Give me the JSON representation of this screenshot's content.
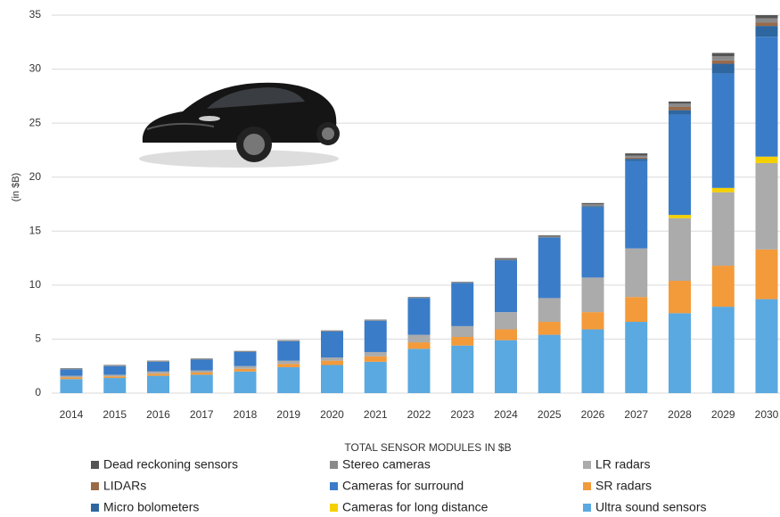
{
  "chart_data": {
    "type": "stacked-bar",
    "y_label": "(in $B)",
    "x_label": "TOTAL SENSOR MODULES IN $B",
    "categories": [
      "2014",
      "2015",
      "2016",
      "2017",
      "2018",
      "2019",
      "2020",
      "2021",
      "2022",
      "2023",
      "2024",
      "2025",
      "2026",
      "2027",
      "2028",
      "2029",
      "2030"
    ],
    "series": [
      {
        "name": "Ultra sound sensors",
        "color": "#5aa9e0",
        "values": [
          1.3,
          1.4,
          1.6,
          1.7,
          2.0,
          2.4,
          2.6,
          2.9,
          4.1,
          4.4,
          4.9,
          5.4,
          5.9,
          6.6,
          7.4,
          8.0,
          8.7
        ]
      },
      {
        "name": "SR radars",
        "color": "#f39a3a",
        "values": [
          0.15,
          0.15,
          0.2,
          0.2,
          0.25,
          0.3,
          0.4,
          0.5,
          0.6,
          0.8,
          1.0,
          1.2,
          1.6,
          2.3,
          3.0,
          3.8,
          4.6
        ]
      },
      {
        "name": "LR radars",
        "color": "#ababab",
        "values": [
          0.15,
          0.15,
          0.2,
          0.2,
          0.25,
          0.3,
          0.3,
          0.4,
          0.7,
          1.0,
          1.6,
          2.2,
          3.2,
          4.5,
          5.8,
          6.8,
          8.0
        ]
      },
      {
        "name": "Cameras for long distance",
        "color": "#f5d000",
        "values": [
          0,
          0,
          0,
          0,
          0,
          0,
          0,
          0,
          0,
          0,
          0,
          0,
          0,
          0,
          0.3,
          0.4,
          0.6
        ]
      },
      {
        "name": "Cameras for surround",
        "color": "#3a7cc8",
        "values": [
          0.6,
          0.8,
          0.9,
          1.0,
          1.3,
          1.8,
          2.4,
          2.9,
          3.4,
          4.0,
          4.8,
          5.6,
          6.5,
          8.1,
          9.3,
          10.6,
          11.1
        ]
      },
      {
        "name": "Micro bolometers",
        "color": "#2e67a0",
        "values": [
          0,
          0,
          0,
          0,
          0,
          0,
          0,
          0,
          0,
          0,
          0,
          0,
          0.1,
          0.2,
          0.4,
          0.9,
          1.0
        ]
      },
      {
        "name": "LIDARs",
        "color": "#9a6a48",
        "values": [
          0,
          0,
          0,
          0,
          0,
          0,
          0,
          0,
          0,
          0,
          0,
          0,
          0,
          0.1,
          0.3,
          0.3,
          0.3
        ]
      },
      {
        "name": "Stereo cameras",
        "color": "#8a8a8a",
        "values": [
          0.05,
          0.05,
          0.05,
          0.05,
          0.05,
          0.05,
          0.05,
          0.05,
          0.05,
          0.05,
          0.1,
          0.1,
          0.2,
          0.2,
          0.3,
          0.4,
          0.4
        ]
      },
      {
        "name": "Dead reckoning sensors",
        "color": "#555555",
        "values": [
          0.05,
          0.05,
          0.05,
          0.05,
          0.05,
          0.05,
          0.05,
          0.05,
          0.05,
          0.05,
          0.1,
          0.1,
          0.1,
          0.2,
          0.2,
          0.3,
          0.3
        ]
      }
    ],
    "ylim": [
      0,
      35
    ],
    "yticks": [
      0,
      5,
      10,
      15,
      20,
      25,
      30,
      35
    ],
    "grid": true
  }
}
